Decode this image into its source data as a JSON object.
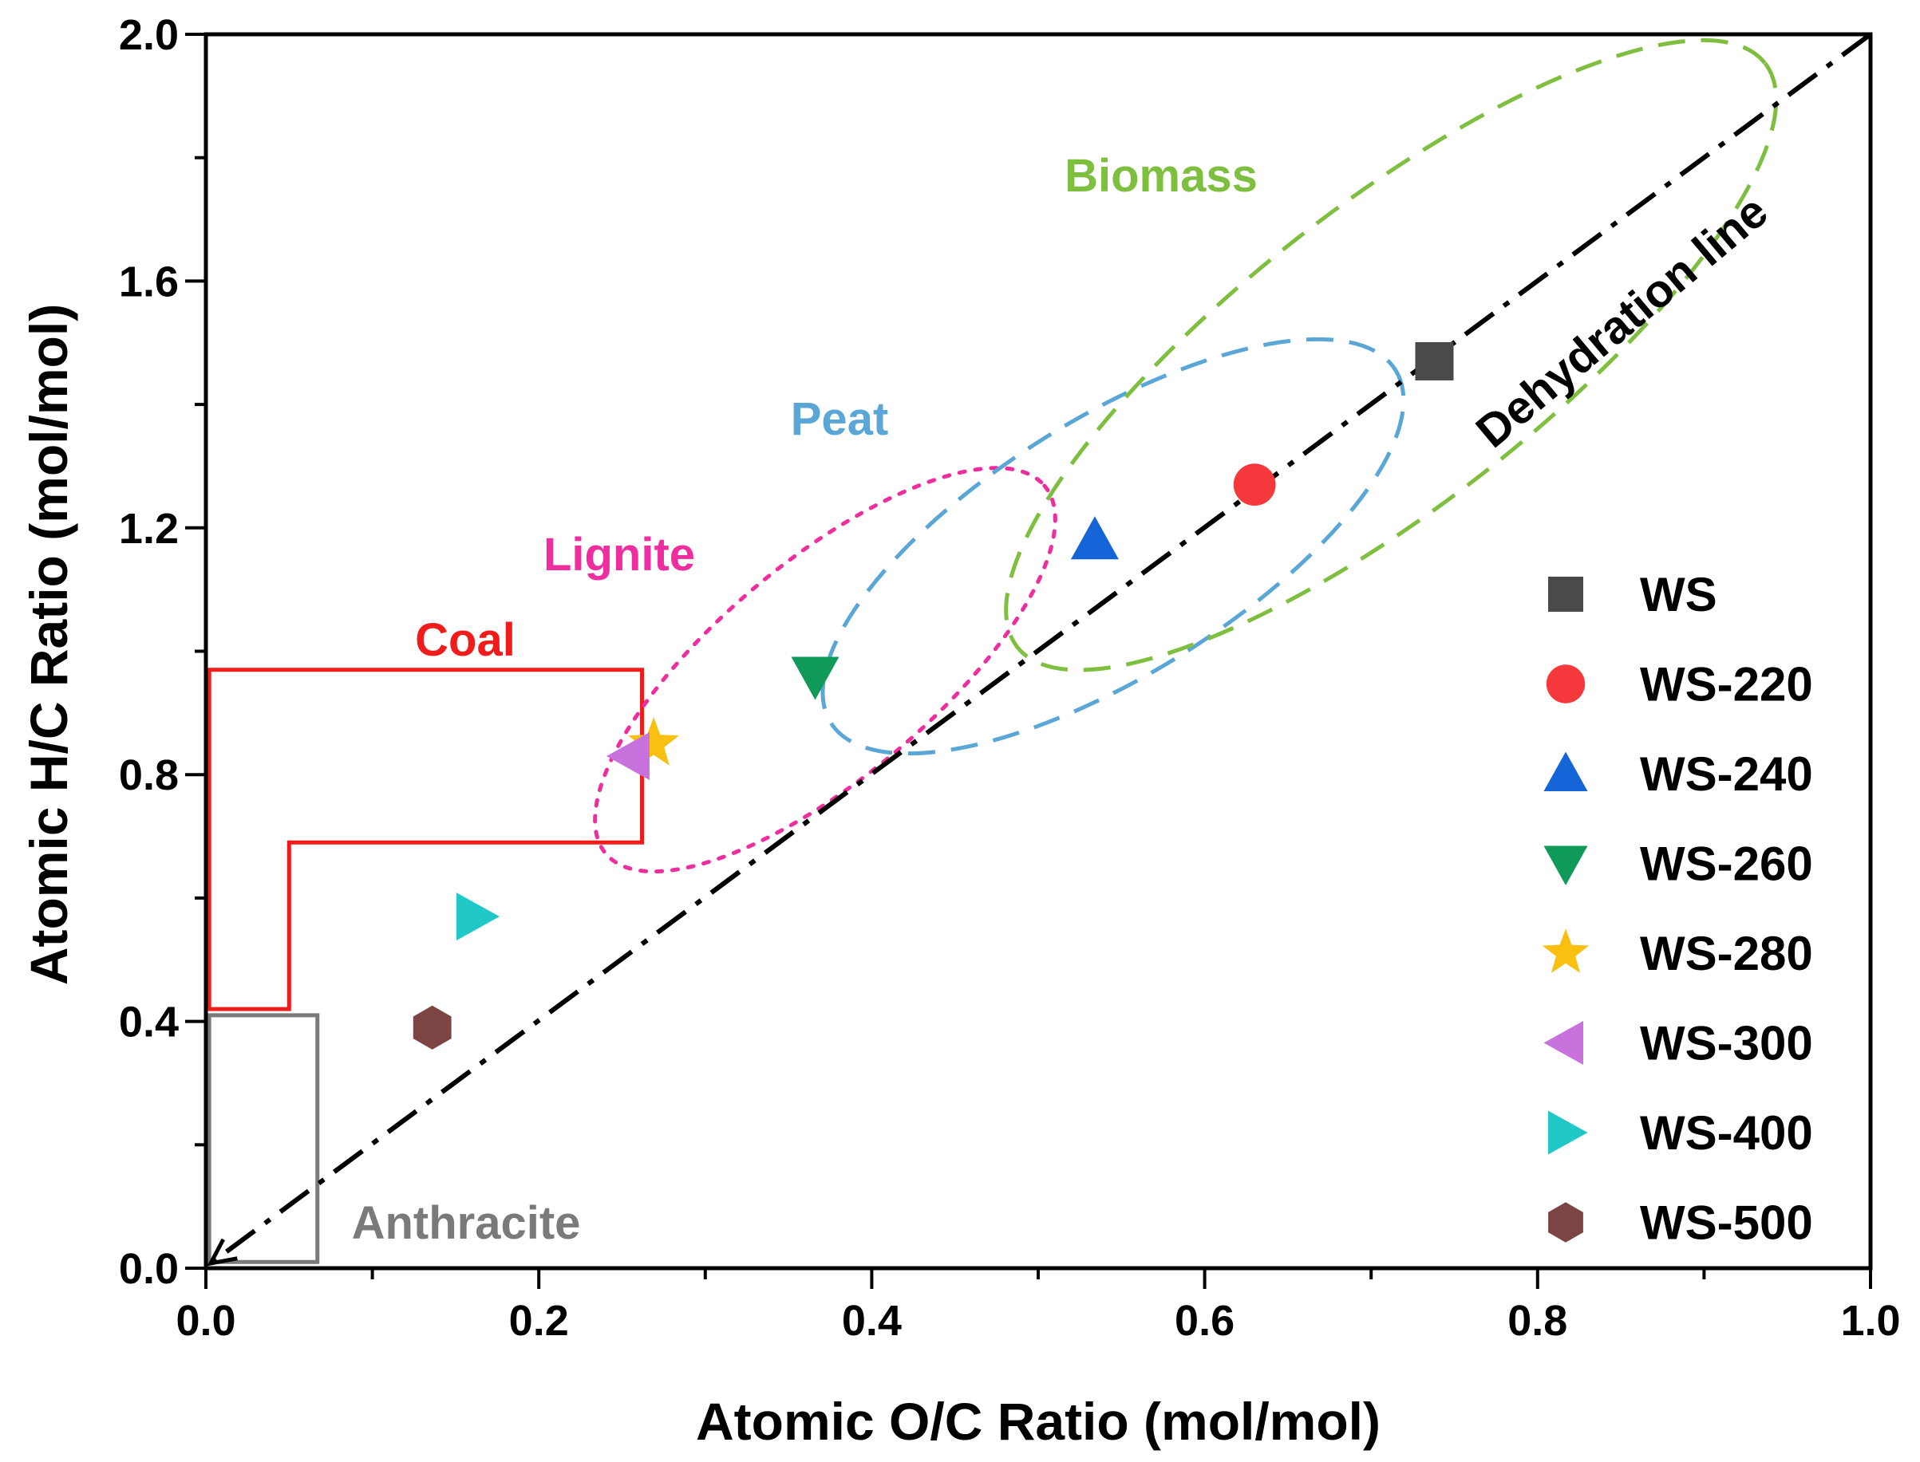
{
  "chart_data": {
    "type": "scatter",
    "title": "",
    "xlabel": "Atomic O/C Ratio (mol/mol)",
    "ylabel": "Atomic H/C Ratio (mol/mol)",
    "xlim": [
      0.0,
      1.0
    ],
    "ylim": [
      0.0,
      2.0
    ],
    "xticks": [
      "0.0",
      "0.2",
      "0.4",
      "0.6",
      "0.8",
      "1.0"
    ],
    "yticks": [
      "0.0",
      "0.4",
      "0.8",
      "1.2",
      "1.6",
      "2.0"
    ],
    "legend_position": "right",
    "series": [
      {
        "name": "WS",
        "marker": "square",
        "color": "#4a4a4a",
        "x": 0.738,
        "y": 1.47
      },
      {
        "name": "WS-220",
        "marker": "circle",
        "color": "#f5383b",
        "x": 0.63,
        "y": 1.27
      },
      {
        "name": "WS-240",
        "marker": "triangle-up",
        "color": "#1565d8",
        "x": 0.534,
        "y": 1.18
      },
      {
        "name": "WS-260",
        "marker": "triangle-down",
        "color": "#0f9a5a",
        "x": 0.366,
        "y": 0.96
      },
      {
        "name": "WS-280",
        "marker": "star",
        "color": "#f9c012",
        "x": 0.269,
        "y": 0.85
      },
      {
        "name": "WS-300",
        "marker": "triangle-left",
        "color": "#c772dd",
        "x": 0.255,
        "y": 0.83
      },
      {
        "name": "WS-400",
        "marker": "triangle-right",
        "color": "#20c8c8",
        "x": 0.162,
        "y": 0.57
      },
      {
        "name": "WS-500",
        "marker": "hexagon",
        "color": "#7d4444",
        "x": 0.136,
        "y": 0.39
      }
    ],
    "dehydration_line": {
      "label": "Dehydration line",
      "color": "#000000",
      "from": [
        1.0,
        2.0
      ],
      "to": [
        0.0,
        0.0
      ]
    },
    "regions": [
      {
        "name": "Coal",
        "color": "#f01c1c",
        "style": "solid",
        "polygon": [
          [
            0.002,
            0.42
          ],
          [
            0.002,
            0.97
          ],
          [
            0.262,
            0.97
          ],
          [
            0.262,
            0.69
          ],
          [
            0.05,
            0.69
          ],
          [
            0.05,
            0.42
          ]
        ]
      },
      {
        "name": "Anthracite",
        "color": "#7a7a7a",
        "style": "solid",
        "polygon": [
          [
            0.002,
            0.01
          ],
          [
            0.002,
            0.41
          ],
          [
            0.067,
            0.41
          ],
          [
            0.067,
            0.01
          ]
        ]
      },
      {
        "name": "Lignite",
        "color": "#ee2d9e",
        "style": "dotted",
        "ellipse": {
          "cx": 0.372,
          "cy": 0.97,
          "rx": 0.172,
          "ry": 0.065,
          "angle_deg": -40
        }
      },
      {
        "name": "Peat",
        "color": "#5aa6d6",
        "style": "dashed",
        "ellipse": {
          "cx": 0.545,
          "cy": 1.17,
          "rx": 0.2,
          "ry": 0.077,
          "angle_deg": -32
        }
      },
      {
        "name": "Biomass",
        "color": "#7fbf3f",
        "style": "dashed",
        "ellipse": {
          "cx": 0.712,
          "cy": 1.48,
          "rx": 0.285,
          "ry": 0.09,
          "angle_deg": -38
        }
      }
    ],
    "annotations": [
      {
        "text": "Coal",
        "color": "#f01c1c"
      },
      {
        "text": "Lignite",
        "color": "#ee2d9e"
      },
      {
        "text": "Peat",
        "color": "#5aa6d6"
      },
      {
        "text": "Biomass",
        "color": "#7fbf3f"
      },
      {
        "text": "Anthracite",
        "color": "#7a7a7a"
      },
      {
        "text": "Dehydration line",
        "color": "#000000"
      }
    ]
  }
}
